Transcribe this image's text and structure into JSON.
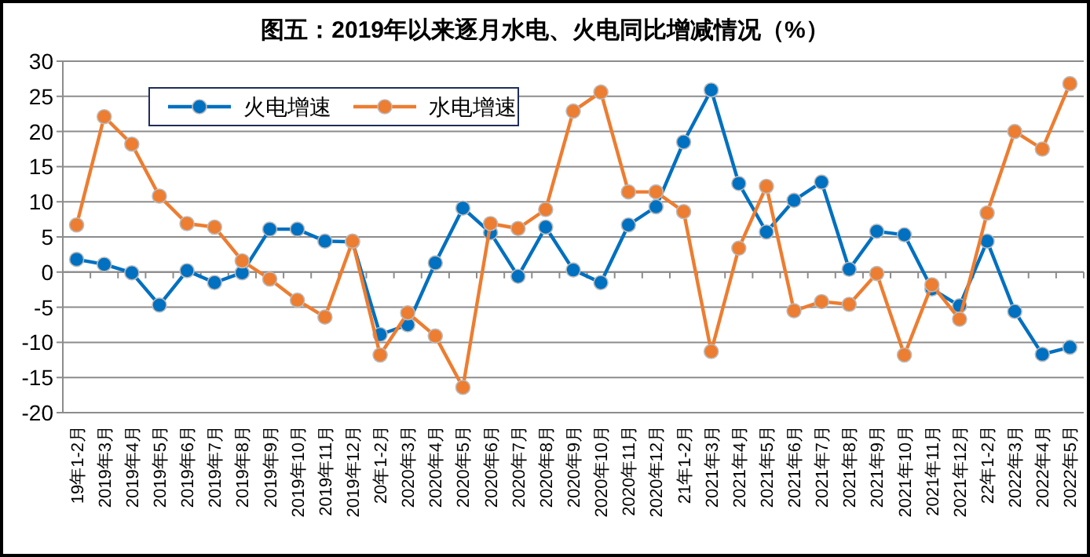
{
  "chart_data": {
    "type": "line",
    "title": "图五：2019年以来逐月水电、火电同比增减情况（%）",
    "categories": [
      "19年1-2月",
      "2019年3月",
      "2019年4月",
      "2019年5月",
      "2019年6月",
      "2019年7月",
      "2019年8月",
      "2019年9月",
      "2019年10月",
      "2019年11月",
      "2019年12月",
      "20年1-2月",
      "2020年3月",
      "2020年4月",
      "2020年5月",
      "2020年6月",
      "2020年7月",
      "2020年8月",
      "2020年9月",
      "2020年10月",
      "2020年11月",
      "2020年12月",
      "21年1-2月",
      "2021年3月",
      "2021年4月",
      "2021年5月",
      "2021年6月",
      "2021年7月",
      "2021年8月",
      "2021年9月",
      "2021年10月",
      "2021年11月",
      "2021年12月",
      "22年1-2月",
      "2022年3月",
      "2022年4月",
      "2022年5月"
    ],
    "series": [
      {
        "name": "火电增速",
        "color": "#0070c0",
        "values": [
          1.8,
          1.1,
          -0.1,
          -4.7,
          0.2,
          -1.5,
          -0.1,
          6.1,
          6.1,
          4.4,
          4.3,
          -8.9,
          -7.5,
          1.3,
          9.1,
          5.6,
          -0.6,
          6.4,
          0.3,
          -1.5,
          6.7,
          9.3,
          18.5,
          25.9,
          12.6,
          5.7,
          10.2,
          12.8,
          0.4,
          5.8,
          5.3,
          -2.4,
          -4.8,
          4.4,
          -5.6,
          -11.7,
          -10.7
        ]
      },
      {
        "name": "水电增速",
        "color": "#ed7d31",
        "values": [
          6.7,
          22.1,
          18.2,
          10.8,
          6.9,
          6.4,
          1.6,
          -1.0,
          -4.0,
          -6.4,
          4.4,
          -11.8,
          -5.8,
          -9.1,
          -16.4,
          6.9,
          6.2,
          8.9,
          22.9,
          25.6,
          11.4,
          11.4,
          8.6,
          -11.3,
          3.4,
          12.2,
          -5.5,
          -4.2,
          -4.6,
          -0.2,
          -11.8,
          -1.8,
          -6.7,
          8.4,
          20.0,
          17.5,
          26.8
        ]
      }
    ],
    "ylim": [
      -20,
      30
    ],
    "yticks": [
      -20,
      -15,
      -10,
      -5,
      0,
      5,
      10,
      15,
      20,
      25,
      30
    ],
    "grid": "y",
    "legend": "top left",
    "marker": "circle",
    "line_style": "solid"
  }
}
